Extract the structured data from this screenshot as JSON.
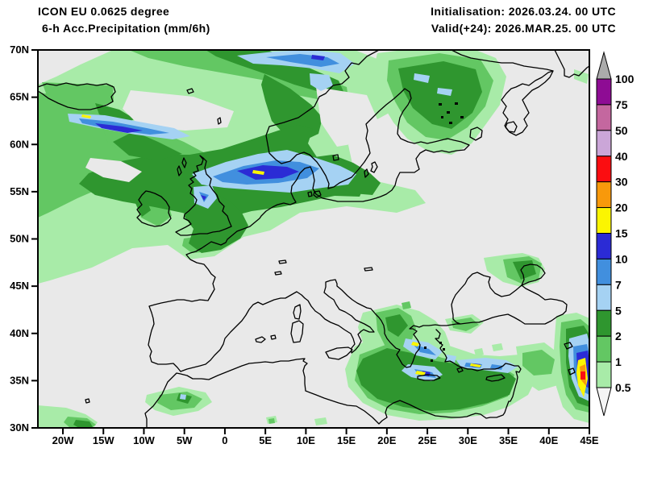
{
  "header": {
    "model_line": "ICON EU 0.0625 degree",
    "field_line": "6-h Acc.Precipitation (mm/6h)",
    "init_line": "Initialisation: 2026.03.24. 00 UTC",
    "valid_line": "Valid(+24): 2026.MAR.25. 00 UTC"
  },
  "map": {
    "background_color": "#E9E9E9",
    "coastline_color": "#000000",
    "frame_color": "#000000",
    "lat_tick_labels": [
      "70N",
      "65N",
      "60N",
      "55N",
      "50N",
      "45N",
      "40N",
      "35N",
      "30N"
    ],
    "lon_tick_labels": [
      "20W",
      "15W",
      "10W",
      "5W",
      "0",
      "5E",
      "10E",
      "15E",
      "20E",
      "25E",
      "30E",
      "35E",
      "40E",
      "45E"
    ]
  },
  "legend": {
    "unit": "mm/6h",
    "tick_labels": [
      "100",
      "75",
      "50",
      "40",
      "30",
      "20",
      "15",
      "10",
      "7",
      "5",
      "2",
      "1",
      "0.5"
    ],
    "band_colors_top_to_bottom": [
      "#8E0C94",
      "#C4679F",
      "#CBA6D8",
      "#FB0D11",
      "#F8990B",
      "#FBF501",
      "#2B2BD5",
      "#418FDE",
      "#A5D2F3",
      "#2F962F",
      "#63C763",
      "#A8EBA8"
    ],
    "above_max_color": "#ABABAB",
    "below_min_color": "#F5F5F5"
  },
  "palette": {
    "light_green_0p5_1": "#A8EBA8",
    "mid_green_1_2": "#63C763",
    "dark_green_2_5": "#2F962F",
    "light_blue_5_7": "#A5D2F3",
    "mid_blue_7_10": "#418FDE",
    "dark_blue_10_15": "#2B2BD5",
    "yellow_15_20": "#FBF501",
    "orange_20_30": "#F8990B",
    "red_30_40": "#FB0D11"
  }
}
